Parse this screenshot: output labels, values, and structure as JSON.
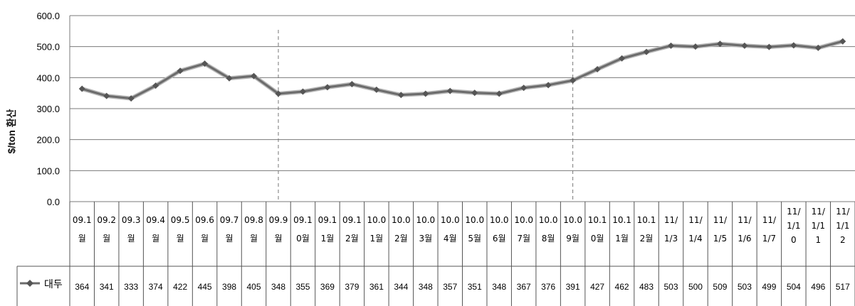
{
  "chart_data": {
    "type": "line",
    "title": "",
    "xlabel": "",
    "ylabel": "$/ton 환산",
    "ylim": [
      0,
      600
    ],
    "yticks": [
      "0.0",
      "100.0",
      "200.0",
      "300.0",
      "400.0",
      "500.0",
      "600.0"
    ],
    "grid": true,
    "legend": "left of data table",
    "categories": [
      [
        "09.1",
        "월"
      ],
      [
        "09.2",
        "월"
      ],
      [
        "09.3",
        "월"
      ],
      [
        "09.4",
        "월"
      ],
      [
        "09.5",
        "월"
      ],
      [
        "09.6",
        "월"
      ],
      [
        "09.7",
        "월"
      ],
      [
        "09.8",
        "월"
      ],
      [
        "09.9",
        "월"
      ],
      [
        "09.1",
        "0월"
      ],
      [
        "09.1",
        "1월"
      ],
      [
        "09.1",
        "2월"
      ],
      [
        "10.0",
        "1월"
      ],
      [
        "10.0",
        "2월"
      ],
      [
        "10.0",
        "3월"
      ],
      [
        "10.0",
        "4월"
      ],
      [
        "10.0",
        "5월"
      ],
      [
        "10.0",
        "6월"
      ],
      [
        "10.0",
        "7월"
      ],
      [
        "10.0",
        "8월"
      ],
      [
        "10.0",
        "9월"
      ],
      [
        "10.1",
        "0월"
      ],
      [
        "10.1",
        "1월"
      ],
      [
        "10.1",
        "2월"
      ],
      [
        "11/",
        "1/3"
      ],
      [
        "11/",
        "1/4"
      ],
      [
        "11/",
        "1/5"
      ],
      [
        "11/",
        "1/6"
      ],
      [
        "11/",
        "1/7"
      ],
      [
        "11/",
        "1/1",
        "0"
      ],
      [
        "11/",
        "1/1",
        "1"
      ],
      [
        "11/",
        "1/1",
        "2"
      ]
    ],
    "series": [
      {
        "name": "대두",
        "color": "#6b6b6b",
        "values": [
          364,
          341,
          333,
          374,
          422,
          445,
          398,
          405,
          348,
          355,
          369,
          379,
          361,
          344,
          348,
          357,
          351,
          348,
          367,
          376,
          391,
          427,
          462,
          483,
          503,
          500,
          509,
          503,
          499,
          504,
          496,
          517
        ]
      }
    ],
    "dividers_after_category_index": [
      7,
      19
    ]
  }
}
